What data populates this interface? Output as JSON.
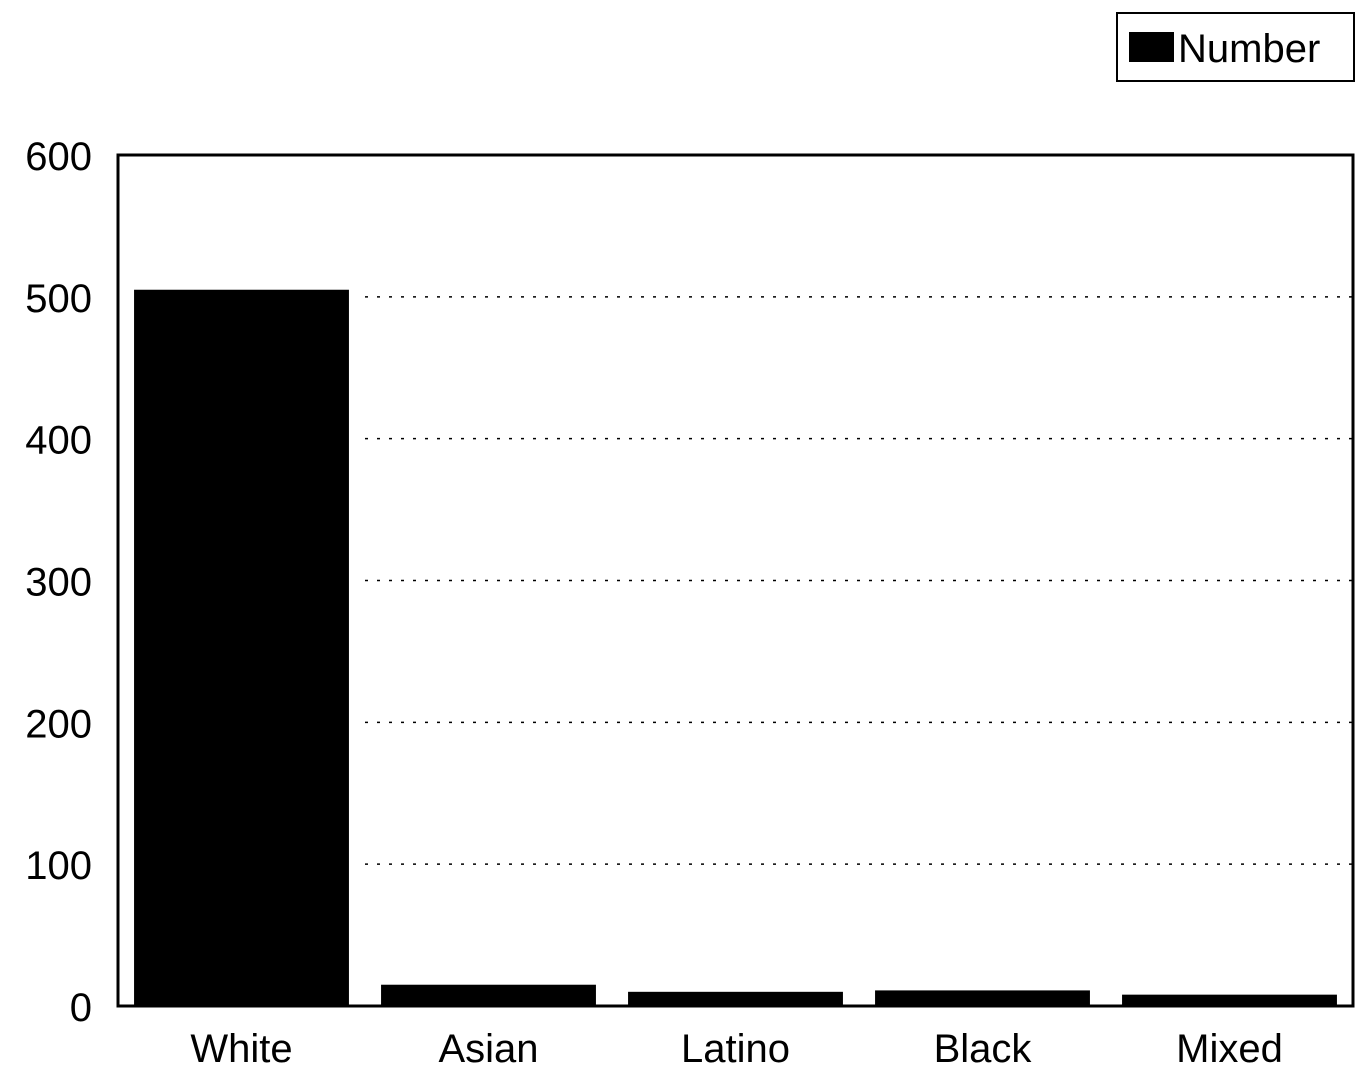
{
  "chart_data": {
    "type": "bar",
    "categories": [
      "White",
      "Asian",
      "Latino",
      "Black",
      "Mixed"
    ],
    "series": [
      {
        "name": "Number",
        "values": [
          505,
          15,
          10,
          11,
          8
        ]
      }
    ],
    "ylim": [
      0,
      600
    ],
    "yticks": [
      0,
      100,
      200,
      300,
      400,
      500,
      600
    ],
    "grid": "horizontal-dotted",
    "legend_position": "top-right",
    "bar_color": "#000000"
  }
}
